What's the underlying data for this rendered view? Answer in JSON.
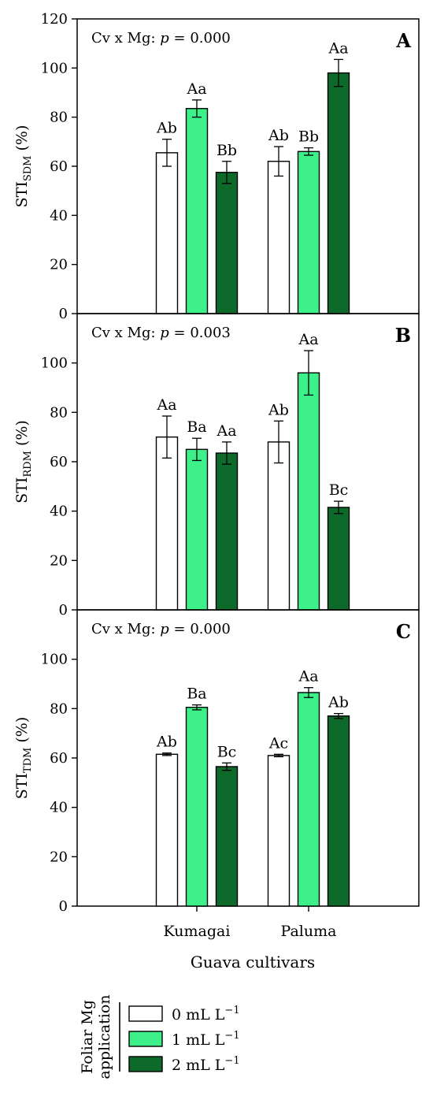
{
  "colors": {
    "0 mL L-1": "#ffffff",
    "1 mL L-1": "#3df08a",
    "2 mL L-1": "#0d6a2b",
    "axis": "#000000"
  },
  "chart_data": [
    {
      "type": "bar",
      "panel_label": "A",
      "annotation_prefix": "Cv x Mg: ",
      "annotation_p": "p",
      "annotation_value": " = 0.000",
      "ylabel_main": "STI",
      "ylabel_sub": "SDM",
      "ylabel_unit": " (%)",
      "ylim": [
        0,
        120
      ],
      "yticks": [
        0,
        20,
        40,
        60,
        80,
        100,
        120
      ],
      "categories": [
        "Kumagai",
        "Paluma"
      ],
      "series": [
        {
          "name": "0 mL L−1",
          "values": [
            65.5,
            62.0
          ],
          "errors": [
            5.5,
            6.0
          ],
          "letters": [
            "Ab",
            "Ab"
          ]
        },
        {
          "name": "1 mL L−1",
          "values": [
            83.5,
            66.0
          ],
          "errors": [
            3.5,
            1.5
          ],
          "letters": [
            "Aa",
            "Bb"
          ]
        },
        {
          "name": "2 mL L−1",
          "values": [
            57.5,
            98.0
          ],
          "errors": [
            4.5,
            5.5
          ],
          "letters": [
            "Bb",
            "Aa"
          ]
        }
      ]
    },
    {
      "type": "bar",
      "panel_label": "B",
      "annotation_prefix": "Cv x Mg: ",
      "annotation_p": "p",
      "annotation_value": " = 0.003",
      "ylabel_main": "STI",
      "ylabel_sub": "RDM",
      "ylabel_unit": " (%)",
      "ylim": [
        0,
        120
      ],
      "yticks": [
        0,
        20,
        40,
        60,
        80,
        100
      ],
      "categories": [
        "Kumagai",
        "Paluma"
      ],
      "series": [
        {
          "name": "0 mL L−1",
          "values": [
            70.0,
            68.0
          ],
          "errors": [
            8.5,
            8.5
          ],
          "letters": [
            "Aa",
            "Ab"
          ]
        },
        {
          "name": "1 mL L−1",
          "values": [
            65.0,
            96.0
          ],
          "errors": [
            4.5,
            9.0
          ],
          "letters": [
            "Ba",
            "Aa"
          ]
        },
        {
          "name": "2 mL L−1",
          "values": [
            63.5,
            41.5
          ],
          "errors": [
            4.5,
            2.5
          ],
          "letters": [
            "Aa",
            "Bc"
          ]
        }
      ]
    },
    {
      "type": "bar",
      "panel_label": "C",
      "annotation_prefix": "Cv x Mg: ",
      "annotation_p": "p",
      "annotation_value": " = 0.000",
      "ylabel_main": "STI",
      "ylabel_sub": "TDM",
      "ylabel_unit": " (%)",
      "ylim": [
        0,
        120
      ],
      "yticks": [
        0,
        20,
        40,
        60,
        80,
        100
      ],
      "categories": [
        "Kumagai",
        "Paluma"
      ],
      "xlabel": "Guava cultivars",
      "series": [
        {
          "name": "0 mL L−1",
          "values": [
            61.5,
            61.0
          ],
          "errors": [
            0.5,
            0.5
          ],
          "letters": [
            "Ab",
            "Ac"
          ]
        },
        {
          "name": "1 mL L−1",
          "values": [
            80.5,
            86.5
          ],
          "errors": [
            1.0,
            2.0
          ],
          "letters": [
            "Ba",
            "Aa"
          ]
        },
        {
          "name": "2 mL L−1",
          "values": [
            56.5,
            77.0
          ],
          "errors": [
            1.5,
            1.0
          ],
          "letters": [
            "Bc",
            "Ab"
          ]
        }
      ]
    }
  ],
  "legend": {
    "title_line1": "Foliar Mg",
    "title_line2": "application",
    "items": [
      {
        "label": "0 mL L",
        "exp": "−1",
        "color_key": "0 mL L-1"
      },
      {
        "label": "1 mL L",
        "exp": "−1",
        "color_key": "1 mL L-1"
      },
      {
        "label": "2 mL L",
        "exp": "−1",
        "color_key": "2 mL L-1"
      }
    ]
  }
}
